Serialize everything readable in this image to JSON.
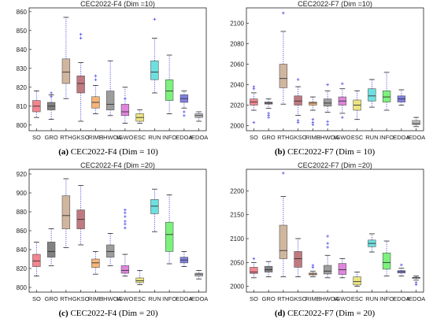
{
  "chart_data": [
    {
      "type": "box",
      "title": "CEC2022-F4 (Dim =10)",
      "caption_label": "(a)",
      "caption_text": "CEC2022-F4 (Dim = 10)",
      "categories": [
        "SO",
        "GRO",
        "RTH",
        "GKSO",
        "RIME",
        "HHWOA",
        "IGWO",
        "ESC",
        "RUN",
        "INFO",
        "EDOA",
        "IEDOA"
      ],
      "ylim": [
        797,
        862
      ],
      "yticks": [
        800,
        810,
        820,
        830,
        840,
        850,
        860
      ],
      "boxes": [
        {
          "whisker_low": 804,
          "q1": 807,
          "median": 810,
          "q3": 813,
          "whisker_high": 818,
          "outliers": []
        },
        {
          "whisker_low": 803,
          "q1": 808,
          "median": 810,
          "q3": 812,
          "whisker_high": 816,
          "outliers": [
            815,
            817
          ]
        },
        {
          "whisker_low": 814,
          "q1": 822,
          "median": 828,
          "q3": 835,
          "whisker_high": 857,
          "outliers": []
        },
        {
          "whisker_low": 802,
          "q1": 817,
          "median": 822,
          "q3": 826,
          "whisker_high": 833,
          "outliers": [
            846,
            848
          ]
        },
        {
          "whisker_low": 806,
          "q1": 809,
          "median": 812,
          "q3": 815,
          "whisker_high": 821,
          "outliers": [
            824,
            826
          ]
        },
        {
          "whisker_low": 805,
          "q1": 808,
          "median": 811,
          "q3": 818,
          "whisker_high": 834,
          "outliers": []
        },
        {
          "whisker_low": 801,
          "q1": 805,
          "median": 807,
          "q3": 811,
          "whisker_high": 820,
          "outliers": [
            814
          ]
        },
        {
          "whisker_low": 801,
          "q1": 802,
          "median": 804,
          "q3": 806,
          "whisker_high": 808,
          "outliers": []
        },
        {
          "whisker_low": 817,
          "q1": 824,
          "median": 828,
          "q3": 834,
          "whisker_high": 846,
          "outliers": [
            856
          ]
        },
        {
          "whisker_low": 806,
          "q1": 813,
          "median": 818,
          "q3": 824,
          "whisker_high": 837,
          "outliers": []
        },
        {
          "whisker_low": 809,
          "q1": 812,
          "median": 814,
          "q3": 816,
          "whisker_high": 818,
          "outliers": [
            807,
            805
          ]
        },
        {
          "whisker_low": 802,
          "q1": 804,
          "median": 805,
          "q3": 806,
          "whisker_high": 807,
          "outliers": []
        }
      ],
      "colors": [
        "#f0707a",
        "#6b6b6b",
        "#c9a98e",
        "#b5616a",
        "#f5a860",
        "#8c8c8c",
        "#d970d6",
        "#e8e06a",
        "#55d9d9",
        "#66ee66",
        "#6b6be0",
        "#b4b4b4"
      ]
    },
    {
      "type": "box",
      "title": "CEC2022-F7 (Dim =10)",
      "caption_label": "(b)",
      "caption_text": "CEC2022-F7 (Dim = 10)",
      "categories": [
        "SO",
        "GRO",
        "RTH",
        "GKSO",
        "RIME",
        "HHWOA",
        "IGWO",
        "ESC",
        "RUN",
        "INFO",
        "EDOA",
        "IEDOA"
      ],
      "ylim": [
        1995,
        2115
      ],
      "yticks": [
        2000,
        2020,
        2040,
        2060,
        2080,
        2100
      ],
      "boxes": [
        {
          "whisker_low": 2015,
          "q1": 2020,
          "median": 2023,
          "q3": 2026,
          "whisker_high": 2032,
          "outliers": [
            2036,
            2038,
            2003
          ]
        },
        {
          "whisker_low": 2017,
          "q1": 2021,
          "median": 2022,
          "q3": 2023,
          "whisker_high": 2026,
          "outliers": [
            2012,
            2010,
            2008
          ]
        },
        {
          "whisker_low": 2021,
          "q1": 2037,
          "median": 2046,
          "q3": 2060,
          "whisker_high": 2092,
          "outliers": [
            2110
          ]
        },
        {
          "whisker_low": 2010,
          "q1": 2020,
          "median": 2024,
          "q3": 2029,
          "whisker_high": 2038,
          "outliers": [
            2045,
            2003,
            2005
          ]
        },
        {
          "whisker_low": 2015,
          "q1": 2020,
          "median": 2022,
          "q3": 2023,
          "whisker_high": 2028,
          "outliers": [
            2001,
            2003,
            2006
          ]
        },
        {
          "whisker_low": 2013,
          "q1": 2019,
          "median": 2022,
          "q3": 2026,
          "whisker_high": 2034,
          "outliers": [
            2040,
            2001,
            2004
          ]
        },
        {
          "whisker_low": 2012,
          "q1": 2020,
          "median": 2024,
          "q3": 2028,
          "whisker_high": 2036,
          "outliers": [
            2041,
            2008
          ]
        },
        {
          "whisker_low": 2006,
          "q1": 2015,
          "median": 2020,
          "q3": 2025,
          "whisker_high": 2034,
          "outliers": []
        },
        {
          "whisker_low": 2018,
          "q1": 2024,
          "median": 2029,
          "q3": 2036,
          "whisker_high": 2045,
          "outliers": []
        },
        {
          "whisker_low": 2015,
          "q1": 2023,
          "median": 2028,
          "q3": 2034,
          "whisker_high": 2052,
          "outliers": []
        },
        {
          "whisker_low": 2020,
          "q1": 2023,
          "median": 2026,
          "q3": 2029,
          "whisker_high": 2035,
          "outliers": []
        },
        {
          "whisker_low": 1999,
          "q1": 2001,
          "median": 2002,
          "q3": 2005,
          "whisker_high": 2008,
          "outliers": []
        }
      ],
      "colors": [
        "#f0707a",
        "#6b6b6b",
        "#c9a98e",
        "#b5616a",
        "#f5a860",
        "#8c8c8c",
        "#d970d6",
        "#e8e06a",
        "#55d9d9",
        "#66ee66",
        "#6b6be0",
        "#b4b4b4"
      ]
    },
    {
      "type": "box",
      "title": "CEC2022-F4 (Dim =20)",
      "caption_label": "(c)",
      "caption_text": "CEC2022-F4 (Dim = 20)",
      "categories": [
        "SO",
        "GRO",
        "RTH",
        "GKSO",
        "RIME",
        "HHWOA",
        "IGWO",
        "ESC",
        "RUN",
        "INFO",
        "EDOA",
        "IEDOA"
      ],
      "ylim": [
        795,
        925
      ],
      "yticks": [
        800,
        820,
        840,
        860,
        880,
        900,
        920
      ],
      "boxes": [
        {
          "whisker_low": 812,
          "q1": 822,
          "median": 828,
          "q3": 835,
          "whisker_high": 848,
          "outliers": []
        },
        {
          "whisker_low": 823,
          "q1": 832,
          "median": 838,
          "q3": 848,
          "whisker_high": 862,
          "outliers": []
        },
        {
          "whisker_low": 842,
          "q1": 862,
          "median": 876,
          "q3": 897,
          "whisker_high": 915,
          "outliers": []
        },
        {
          "whisker_low": 845,
          "q1": 862,
          "median": 872,
          "q3": 882,
          "whisker_high": 908,
          "outliers": []
        },
        {
          "whisker_low": 814,
          "q1": 821,
          "median": 826,
          "q3": 830,
          "whisker_high": 838,
          "outliers": []
        },
        {
          "whisker_low": 823,
          "q1": 832,
          "median": 838,
          "q3": 845,
          "whisker_high": 857,
          "outliers": []
        },
        {
          "whisker_low": 812,
          "q1": 815,
          "median": 818,
          "q3": 823,
          "whisker_high": 835,
          "outliers": [
            863,
            867,
            870,
            875,
            879,
            882
          ]
        },
        {
          "whisker_low": 803,
          "q1": 805,
          "median": 807,
          "q3": 810,
          "whisker_high": 818,
          "outliers": []
        },
        {
          "whisker_low": 859,
          "q1": 878,
          "median": 886,
          "q3": 893,
          "whisker_high": 904,
          "outliers": []
        },
        {
          "whisker_low": 825,
          "q1": 838,
          "median": 856,
          "q3": 869,
          "whisker_high": 898,
          "outliers": []
        },
        {
          "whisker_low": 822,
          "q1": 826,
          "median": 829,
          "q3": 832,
          "whisker_high": 838,
          "outliers": []
        },
        {
          "whisker_low": 809,
          "q1": 812,
          "median": 814,
          "q3": 815,
          "whisker_high": 818,
          "outliers": []
        }
      ],
      "colors": [
        "#f0707a",
        "#6b6b6b",
        "#c9a98e",
        "#b5616a",
        "#f5a860",
        "#8c8c8c",
        "#d970d6",
        "#e8e06a",
        "#55d9d9",
        "#66ee66",
        "#6b6be0",
        "#b4b4b4"
      ]
    },
    {
      "type": "box",
      "title": "CEC2022-F7 (Dim =20)",
      "caption_label": "(d)",
      "caption_text": "CEC2022-F7 (Dim = 20)",
      "categories": [
        "SO",
        "GRO",
        "RTH",
        "GKSO",
        "RIME",
        "HHWOA",
        "IGWO",
        "ESC",
        "RUN",
        "INFO",
        "EDOA",
        "IEDOA"
      ],
      "ylim": [
        1988,
        2245
      ],
      "yticks": [
        2000,
        2050,
        2100,
        2150,
        2200
      ],
      "boxes": [
        {
          "whisker_low": 2018,
          "q1": 2027,
          "median": 2030,
          "q3": 2040,
          "whisker_high": 2050,
          "outliers": [
            2058
          ]
        },
        {
          "whisker_low": 2020,
          "q1": 2030,
          "median": 2035,
          "q3": 2042,
          "whisker_high": 2052,
          "outliers": []
        },
        {
          "whisker_low": 2020,
          "q1": 2058,
          "median": 2075,
          "q3": 2128,
          "whisker_high": 2188,
          "outliers": [
            2237
          ]
        },
        {
          "whisker_low": 2020,
          "q1": 2040,
          "median": 2058,
          "q3": 2073,
          "whisker_high": 2100,
          "outliers": []
        },
        {
          "whisker_low": 2020,
          "q1": 2024,
          "median": 2026,
          "q3": 2028,
          "whisker_high": 2032,
          "outliers": [
            2040,
            2044
          ]
        },
        {
          "whisker_low": 2018,
          "q1": 2026,
          "median": 2032,
          "q3": 2044,
          "whisker_high": 2065,
          "outliers": [
            2082,
            2090,
            2105
          ]
        },
        {
          "whisker_low": 2018,
          "q1": 2025,
          "median": 2035,
          "q3": 2048,
          "whisker_high": 2058,
          "outliers": []
        },
        {
          "whisker_low": 2000,
          "q1": 2003,
          "median": 2010,
          "q3": 2020,
          "whisker_high": 2030,
          "outliers": []
        },
        {
          "whisker_low": 2072,
          "q1": 2083,
          "median": 2090,
          "q3": 2097,
          "whisker_high": 2110,
          "outliers": []
        },
        {
          "whisker_low": 2022,
          "q1": 2036,
          "median": 2050,
          "q3": 2070,
          "whisker_high": 2095,
          "outliers": []
        },
        {
          "whisker_low": 2022,
          "q1": 2028,
          "median": 2031,
          "q3": 2033,
          "whisker_high": 2038,
          "outliers": [
            2045
          ]
        },
        {
          "whisker_low": 2013,
          "q1": 2017,
          "median": 2018,
          "q3": 2019,
          "whisker_high": 2022,
          "outliers": [
            2008,
            2004
          ]
        }
      ],
      "colors": [
        "#f0707a",
        "#6b6b6b",
        "#c9a98e",
        "#b5616a",
        "#f5a860",
        "#8c8c8c",
        "#d970d6",
        "#e8e06a",
        "#55d9d9",
        "#66ee66",
        "#6b6be0",
        "#b4b4b4"
      ]
    }
  ]
}
